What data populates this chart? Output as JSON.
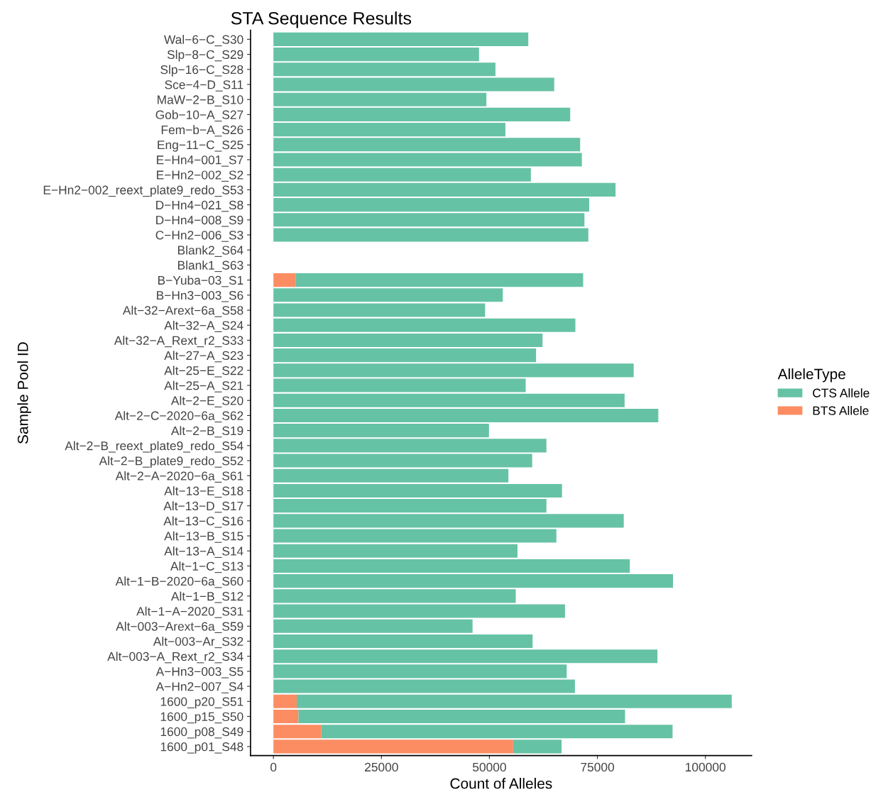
{
  "chart_data": {
    "type": "bar",
    "orientation": "horizontal",
    "stacked": true,
    "title": "STA Sequence Results",
    "xlabel": "Count of Alleles",
    "ylabel": "Sample Pool ID",
    "legend_title": "AlleleType",
    "legend": "right",
    "grid": false,
    "categories": [
      "Wal−6−C_S30",
      "Slp−8−C_S29",
      "Slp−16−C_S28",
      "Sce−4−D_S11",
      "MaW−2−B_S10",
      "Gob−10−A_S27",
      "Fem−b−A_S26",
      "Eng−11−C_S25",
      "E−Hn4−001_S7",
      "E−Hn2−002_S2",
      "E−Hn2−002_reext_plate9_redo_S53",
      "D−Hn4−021_S8",
      "D−Hn4−008_S9",
      "C−Hn2−006_S3",
      "Blank2_S64",
      "Blank1_S63",
      "B−Yuba−03_S1",
      "B−Hn3−003_S6",
      "Alt−32−Arext−6a_S58",
      "Alt−32−A_S24",
      "Alt−32−A_Rext_r2_S33",
      "Alt−27−A_S23",
      "Alt−25−E_S22",
      "Alt−25−A_S21",
      "Alt−2−E_S20",
      "Alt−2−C−2020−6a_S62",
      "Alt−2−B_S19",
      "Alt−2−B_reext_plate9_redo_S54",
      "Alt−2−B_plate9_redo_S52",
      "Alt−2−A−2020−6a_S61",
      "Alt−13−E_S18",
      "Alt−13−D_S17",
      "Alt−13−C_S16",
      "Alt−13−B_S15",
      "Alt−13−A_S14",
      "Alt−1−C_S13",
      "Alt−1−B−2020−6a_S60",
      "Alt−1−B_S12",
      "Alt−1−A−2020_S31",
      "Alt−003−Arext−6a_S59",
      "Alt−003−Ar_S32",
      "Alt−003−A_Rext_r2_S34",
      "A−Hn3−003_S5",
      "A−Hn2−007_S4",
      "1600_p20_S51",
      "1600_p15_S50",
      "1600_p08_S49",
      "1600_p01_S48"
    ],
    "series": [
      {
        "name": "BTS Allele",
        "color": "#fc8d62",
        "values": [
          0,
          0,
          0,
          0,
          0,
          0,
          0,
          0,
          0,
          0,
          0,
          0,
          0,
          0,
          0,
          0,
          5200,
          0,
          0,
          0,
          0,
          0,
          0,
          0,
          0,
          0,
          0,
          0,
          0,
          0,
          0,
          0,
          0,
          0,
          0,
          0,
          0,
          0,
          0,
          0,
          0,
          0,
          0,
          0,
          5400,
          5800,
          11100,
          55500
        ]
      },
      {
        "name": "CTS Allele",
        "color": "#66c2a5",
        "values": [
          59000,
          47600,
          51400,
          65000,
          49300,
          68700,
          53700,
          71000,
          71400,
          59600,
          79200,
          73100,
          72000,
          72900,
          0,
          0,
          66500,
          53100,
          49000,
          69900,
          62300,
          60800,
          83400,
          58400,
          81300,
          89100,
          49900,
          63200,
          59900,
          54400,
          66800,
          63200,
          81100,
          65500,
          56500,
          82500,
          92500,
          56100,
          67500,
          46100,
          60000,
          88900,
          67900,
          69800,
          100700,
          75600,
          81300,
          11200
        ]
      }
    ],
    "xlim": [
      -5300,
      110700
    ],
    "xticks": [
      0,
      25000,
      50000,
      75000,
      100000
    ]
  }
}
